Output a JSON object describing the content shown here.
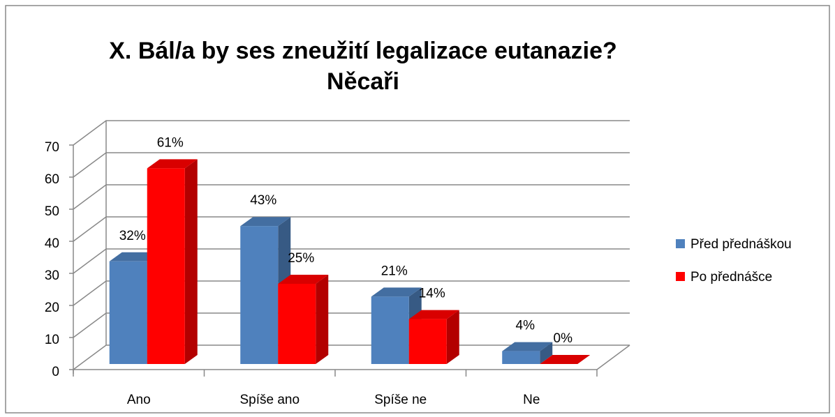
{
  "chart_data": {
    "type": "bar3d",
    "title": [
      "X. Bál/a by ses zneužití legalizace eutanazie?",
      "Něcaři"
    ],
    "categories": [
      "Ano",
      "Spíše ano",
      "Spíše ne",
      "Ne"
    ],
    "series": [
      {
        "name": "Před přednáškou",
        "color": "#4f81bd",
        "values": [
          32,
          43,
          21,
          4
        ],
        "value_labels": [
          "32%",
          "43%",
          "21%",
          "4%"
        ]
      },
      {
        "name": "Po přednášce",
        "color": "#ff0000",
        "values": [
          61,
          25,
          14,
          0
        ],
        "value_labels": [
          "61%",
          "25%",
          "14%",
          "0%"
        ]
      }
    ],
    "ylim": [
      0,
      70
    ],
    "yticks": [
      0,
      10,
      20,
      30,
      40,
      50,
      60,
      70
    ],
    "grid": true,
    "legend": "right"
  }
}
